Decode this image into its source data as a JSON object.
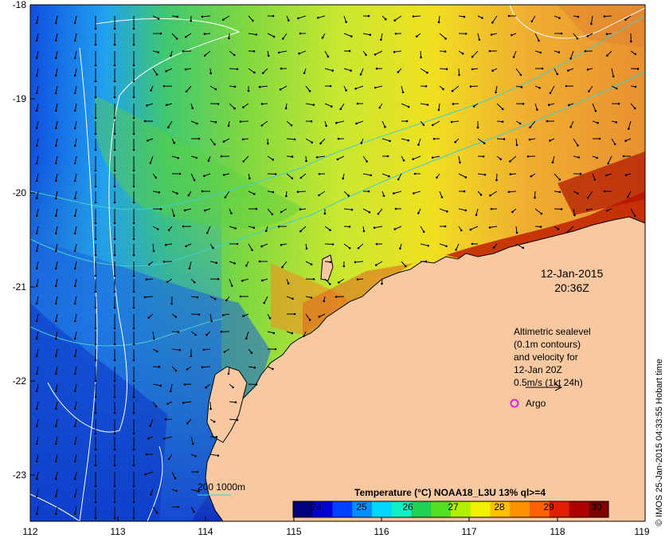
{
  "axes": {
    "lat_labels": [
      "-18",
      "-19",
      "-20",
      "-21",
      "-22",
      "-23"
    ],
    "lon_labels": [
      "112",
      "113",
      "114",
      "115",
      "116",
      "117",
      "118",
      "119"
    ]
  },
  "timestamp": {
    "date": "12-Jan-2015",
    "time": "20:36Z"
  },
  "legend": {
    "line1": "Altimetric sealevel",
    "line2": "(0.1m contours)",
    "line3": "and velocity for",
    "line4": "12-Jan 20Z",
    "line5": "0.5m/s (1kt 24h)",
    "argo": "Argo",
    "argo_color": "#e020e0"
  },
  "bathymetry": {
    "label": "200  1000m",
    "color": "#40d0d0"
  },
  "colorbar": {
    "title": "Temperature (°C) NOAA18_L3U 13% ql>=4",
    "ticks": [
      "24",
      "25",
      "26",
      "27",
      "28",
      "29",
      "30"
    ],
    "colors": [
      "#00007f",
      "#0000d0",
      "#0040ff",
      "#0090ff",
      "#00d8ff",
      "#10f0c0",
      "#20d050",
      "#50e020",
      "#b0f000",
      "#f0f000",
      "#ffc000",
      "#ff9000",
      "#ff6000",
      "#e02000",
      "#b00000",
      "#800000"
    ]
  },
  "credit": "© IMOS 25-Jan-2015 04:33:55 Hobart time",
  "colors": {
    "land": "#f8c8a0",
    "arrow": "#000000",
    "contour": "#ffffff"
  }
}
